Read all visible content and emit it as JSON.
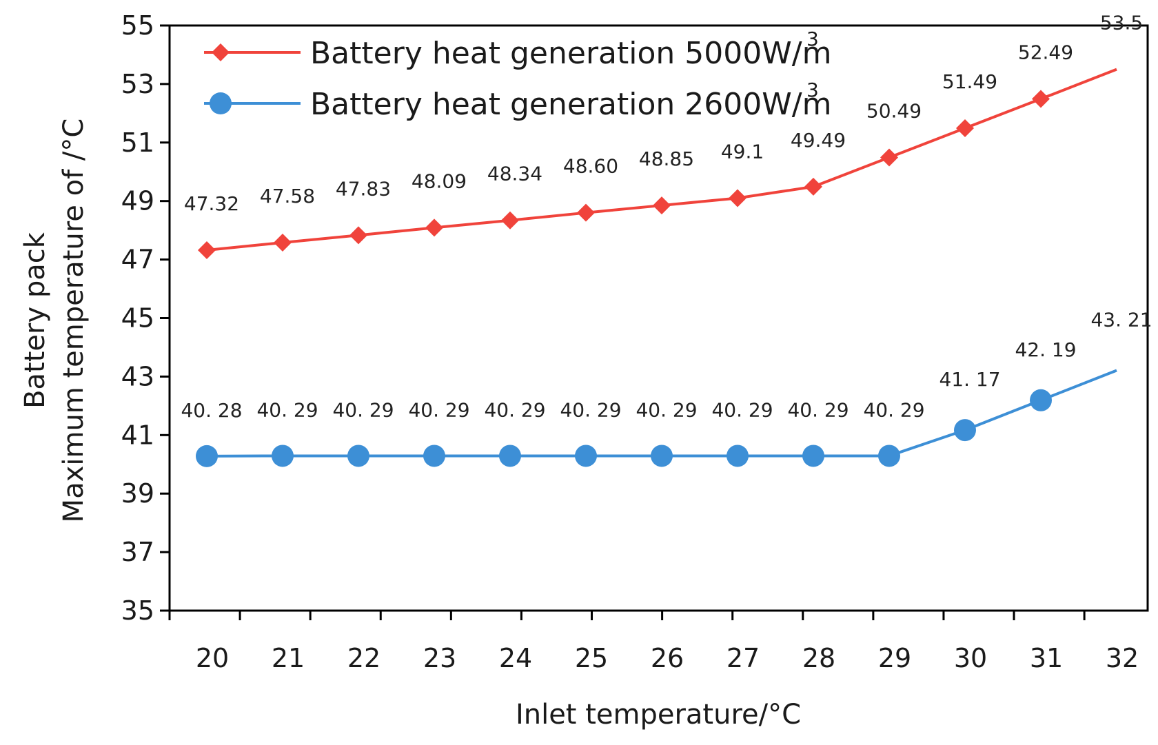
{
  "chart_data": {
    "type": "line",
    "title": "",
    "xlabel": "Inlet temperature/°C",
    "ylabel_line1": "Battery pack",
    "ylabel_line2": "Maximum temperature of /°C",
    "x": [
      20,
      21,
      22,
      23,
      24,
      25,
      26,
      27,
      28,
      29,
      30,
      31,
      32
    ],
    "x_tick_labels": [
      "20",
      "21",
      "22",
      "23",
      "24",
      "25",
      "26",
      "27",
      "28",
      "29",
      "30",
      "31",
      "32"
    ],
    "ylim": [
      35,
      55
    ],
    "y_ticks": [
      35,
      37,
      39,
      41,
      43,
      45,
      47,
      49,
      51,
      53,
      55
    ],
    "y_tick_labels": [
      "35",
      "37",
      "39",
      "41",
      "43",
      "45",
      "47",
      "49",
      "51",
      "53",
      "55"
    ],
    "grid": false,
    "legend_position": "top-left",
    "series": [
      {
        "name": "Battery heat generation 5000W/m",
        "name_superscript": "3",
        "color": "#f0433b",
        "marker": "diamond",
        "values": [
          47.32,
          47.58,
          47.83,
          48.09,
          48.34,
          48.6,
          48.85,
          49.1,
          49.49,
          50.49,
          51.49,
          52.49,
          53.5
        ],
        "labels": [
          "47.32",
          "47.58",
          "47.83",
          "48.09",
          "48.34",
          "48.60",
          "48.85",
          "49.1",
          "49.49",
          "50.49",
          "51.49",
          "52.49",
          "53.5"
        ]
      },
      {
        "name": "Battery heat generation 2600W/m",
        "name_superscript": "3",
        "color": "#3d8fd6",
        "marker": "circle",
        "values": [
          40.28,
          40.29,
          40.29,
          40.29,
          40.29,
          40.29,
          40.29,
          40.29,
          40.29,
          40.29,
          41.17,
          42.19,
          43.21
        ],
        "labels": [
          "40. 28",
          "40. 29",
          "40. 29",
          "40. 29",
          "40. 29",
          "40. 29",
          "40. 29",
          "40. 29",
          "40. 29",
          "40. 29",
          "41. 17",
          "42. 19",
          "43. 21"
        ]
      }
    ]
  }
}
